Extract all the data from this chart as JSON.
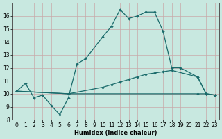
{
  "xlabel": "Humidex (Indice chaleur)",
  "xlim": [
    -0.5,
    23.5
  ],
  "ylim": [
    8,
    17
  ],
  "yticks": [
    8,
    9,
    10,
    11,
    12,
    13,
    14,
    15,
    16
  ],
  "xticks": [
    0,
    1,
    2,
    3,
    4,
    5,
    6,
    7,
    8,
    9,
    10,
    11,
    12,
    13,
    14,
    15,
    16,
    17,
    18,
    19,
    20,
    21,
    22,
    23
  ],
  "bg_color": "#c8e8e0",
  "line_color": "#1a6b6b",
  "grid_color_major": "#d8b8b8",
  "grid_color_minor": "#c8d8d0",
  "series1": {
    "x": [
      0,
      1,
      2,
      3,
      4,
      5,
      6,
      7,
      8,
      10,
      11,
      12,
      13,
      14,
      15,
      16,
      17,
      18,
      19,
      21,
      22,
      23
    ],
    "y": [
      10.2,
      10.8,
      9.7,
      9.9,
      9.1,
      8.4,
      9.7,
      12.3,
      12.7,
      14.4,
      15.2,
      16.5,
      15.8,
      16.0,
      16.3,
      16.3,
      14.8,
      12.0,
      12.0,
      11.3,
      10.0,
      9.9
    ]
  },
  "series2": {
    "x": [
      0,
      6,
      10,
      11,
      12,
      13,
      14,
      15,
      16,
      17,
      18,
      21,
      22,
      23
    ],
    "y": [
      10.2,
      10.0,
      10.5,
      10.7,
      10.9,
      11.1,
      11.3,
      11.5,
      11.6,
      11.7,
      11.8,
      11.3,
      10.0,
      9.9
    ]
  },
  "series3": {
    "x": [
      0,
      6,
      21,
      22,
      23
    ],
    "y": [
      10.2,
      10.0,
      10.0,
      10.0,
      9.9
    ]
  }
}
